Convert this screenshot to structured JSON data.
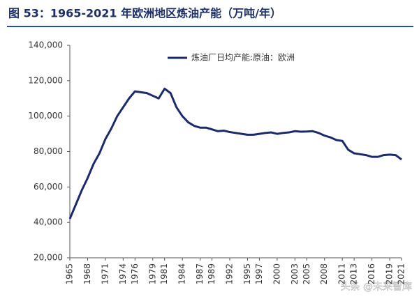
{
  "chart_data": {
    "type": "line",
    "title": "图 53：1965-2021 年欧洲地区炼油产能（万吨/年）",
    "watermark": "头条 @未来智库",
    "x": [
      1965,
      1966,
      1967,
      1968,
      1969,
      1970,
      1971,
      1972,
      1973,
      1974,
      1975,
      1976,
      1977,
      1978,
      1979,
      1980,
      1981,
      1982,
      1983,
      1984,
      1985,
      1986,
      1987,
      1988,
      1989,
      1990,
      1991,
      1992,
      1993,
      1994,
      1995,
      1996,
      1997,
      1998,
      1999,
      2000,
      2001,
      2002,
      2003,
      2004,
      2005,
      2006,
      2007,
      2008,
      2009,
      2010,
      2011,
      2012,
      2013,
      2014,
      2015,
      2016,
      2017,
      2018,
      2019,
      2020,
      2021
    ],
    "series": [
      {
        "name": "炼油厂日均产能:原油：欧洲",
        "color": "#1b2a6b",
        "values": [
          42000,
          50000,
          58000,
          65000,
          73000,
          79000,
          87000,
          93000,
          100000,
          105000,
          110000,
          114000,
          113500,
          113000,
          111500,
          110000,
          115500,
          113000,
          105000,
          100000,
          96500,
          94500,
          93500,
          93500,
          92500,
          91500,
          91800,
          91000,
          90500,
          90000,
          89500,
          89500,
          90000,
          90500,
          90800,
          90000,
          90500,
          90800,
          91500,
          91200,
          91300,
          91500,
          90500,
          89000,
          88000,
          86500,
          86000,
          81000,
          79000,
          78500,
          78000,
          77000,
          77000,
          78000,
          78300,
          78000,
          75500
        ]
      }
    ],
    "xlim": [
      1965,
      2021
    ],
    "xticks": [
      1965,
      1968,
      1971,
      1974,
      1976,
      1979,
      1981,
      1984,
      1987,
      1989,
      1992,
      1995,
      1997,
      2000,
      2003,
      2005,
      2008,
      2011,
      2013,
      2016,
      2019,
      2021
    ],
    "ylim": [
      20000,
      140000
    ],
    "yticks": [
      {
        "value": 20000,
        "label": "20,000"
      },
      {
        "value": 40000,
        "label": "40,000"
      },
      {
        "value": 60000,
        "label": "60,000"
      },
      {
        "value": 80000,
        "label": "80,000"
      },
      {
        "value": 100000,
        "label": "100,000"
      },
      {
        "value": 120000,
        "label": "120,000"
      },
      {
        "value": 140000,
        "label": "140,000"
      }
    ],
    "grid": false,
    "legend": "top"
  }
}
